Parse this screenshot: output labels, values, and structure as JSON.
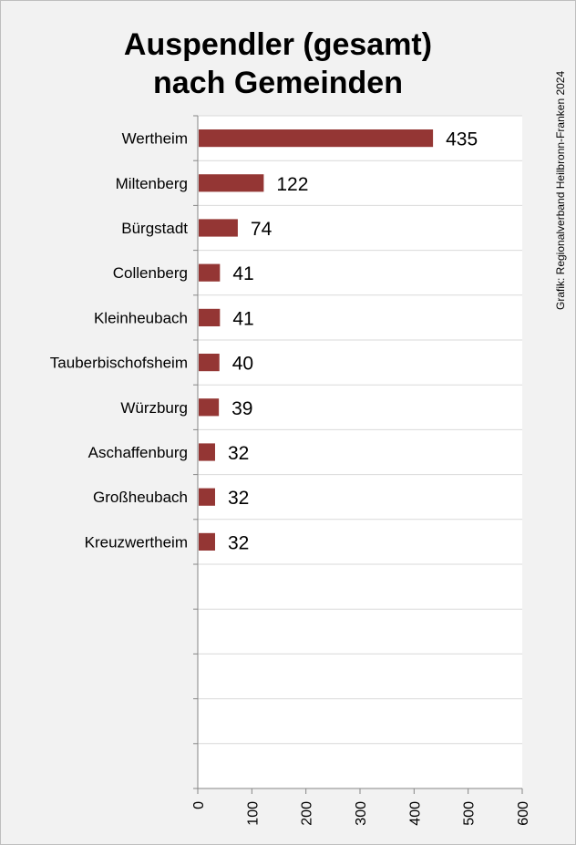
{
  "chart_data": {
    "type": "bar",
    "orientation": "horizontal",
    "title": "Auspendler (gesamt) nach Gemeinden",
    "title_lines": [
      "Auspendler (gesamt)",
      "nach Gemeinden"
    ],
    "categories": [
      "Wertheim",
      "Miltenberg",
      "Bürgstadt",
      "Collenberg",
      "Kleinheubach",
      "Tauberbischofsheim",
      "Würzburg",
      "Aschaffenburg",
      "Großheubach",
      "Kreuzwertheim"
    ],
    "values": [
      435,
      122,
      74,
      41,
      41,
      40,
      39,
      32,
      32,
      32
    ],
    "xlim": [
      0,
      600
    ],
    "xticks": [
      0,
      100,
      200,
      300,
      400,
      500,
      600
    ],
    "empty_slots": 5,
    "grid": true,
    "data_labels": true,
    "bar_color": "#943634",
    "credit": "Grafik: Regionalverband Heilbronn-Franken 2024"
  }
}
